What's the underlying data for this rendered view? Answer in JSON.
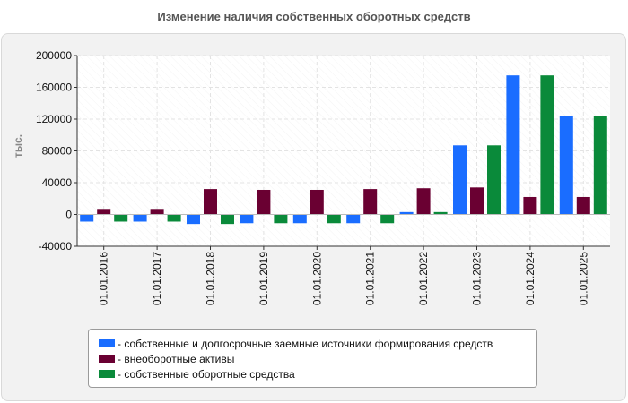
{
  "chart_data": {
    "type": "bar",
    "title": "Изменение наличия собственных оборотных средств",
    "ylabel": "тыс.",
    "xlabel": "",
    "ylim": [
      -40000,
      200000
    ],
    "yticks": [
      "200000",
      "160000",
      "120000",
      "80000",
      "40000",
      "0",
      "-40000"
    ],
    "ytick_values": [
      200000,
      160000,
      120000,
      80000,
      40000,
      0,
      -40000
    ],
    "categories": [
      "01.01.2016",
      "01.01.2017",
      "01.01.2018",
      "01.01.2019",
      "01.01.2020",
      "01.01.2021",
      "01.01.2022",
      "01.01.2023",
      "01.01.2024",
      "01.01.2025"
    ],
    "series": [
      {
        "name": "собственные и долгосрочные заемные источники формирования средств",
        "color": "#1a6dff",
        "values": [
          -9000,
          -9000,
          -12000,
          -11000,
          -11000,
          -11000,
          3000,
          87000,
          175000,
          124000
        ]
      },
      {
        "name": "внеоборотные активы",
        "color": "#6a0032",
        "values": [
          7000,
          7000,
          32000,
          31000,
          31000,
          32000,
          33000,
          34000,
          22000,
          22000
        ]
      },
      {
        "name": "собственные оборотные средства",
        "color": "#0a8a3a",
        "values": [
          -9000,
          -9000,
          -12000,
          -11000,
          -11000,
          -11000,
          3000,
          87000,
          175000,
          124000
        ]
      }
    ],
    "legend_position": "bottom",
    "grid": true
  },
  "legend": {
    "items": [
      {
        "label": "- собственные и долгосрочные заемные источники формирования средств",
        "color": "#1a6dff"
      },
      {
        "label": "- внеоборотные активы",
        "color": "#6a0032"
      },
      {
        "label": "- собственные оборотные средства",
        "color": "#0a8a3a"
      }
    ]
  }
}
